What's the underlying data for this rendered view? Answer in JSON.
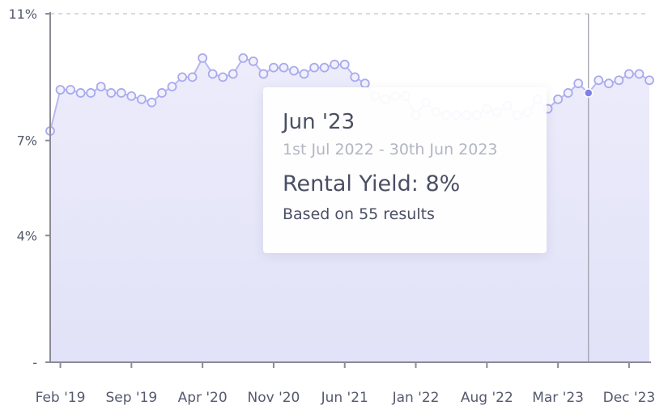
{
  "chart_data": {
    "type": "area",
    "y_tick_labels": [
      "11%",
      "7%",
      "4%",
      "-"
    ],
    "y_ticks": [
      11,
      7,
      4,
      0
    ],
    "ylim": [
      0,
      11
    ],
    "x_tick_labels": [
      "Feb '19",
      "Sep '19",
      "Apr '20",
      "Nov '20",
      "Jun '21",
      "Jan '22",
      "Aug '22",
      "Mar '23",
      "Dec '23"
    ],
    "x_tick_positions": [
      1,
      8,
      15,
      22,
      29,
      36,
      43,
      50,
      57
    ],
    "grid": true,
    "highlight_index": 53,
    "series": [
      {
        "values": [
          7.3,
          8.6,
          8.6,
          8.5,
          8.5,
          8.7,
          8.5,
          8.5,
          8.4,
          8.3,
          8.2,
          8.5,
          8.7,
          9.0,
          9.0,
          9.6,
          9.1,
          9.0,
          9.1,
          9.6,
          9.5,
          9.1,
          9.3,
          9.3,
          9.2,
          9.1,
          9.3,
          9.3,
          9.4,
          9.4,
          9.0,
          8.8,
          8.4,
          8.3,
          8.4,
          8.4,
          7.8,
          8.2,
          7.9,
          7.8,
          7.8,
          7.8,
          7.8,
          8.0,
          7.9,
          8.1,
          7.8,
          7.9,
          8.3,
          8.0,
          8.3,
          8.5,
          8.8,
          8.5,
          8.9,
          8.8,
          8.9,
          9.1,
          9.1,
          8.9
        ]
      }
    ]
  },
  "tooltip": {
    "period": "Jun '23",
    "range": "1st Jul 2022 - 30th Jun 2023",
    "yield": "Rental Yield: 8%",
    "based_on": "Based on 55 results"
  },
  "colors": {
    "line": "#b8b8f0",
    "marker": "#a9a9ee",
    "highlight": "#7f7fe6",
    "fill_top": "#ececfb",
    "fill_bottom": "#e2e2f8",
    "grid": "#d9d9e0",
    "axis": "#8a8a98"
  }
}
